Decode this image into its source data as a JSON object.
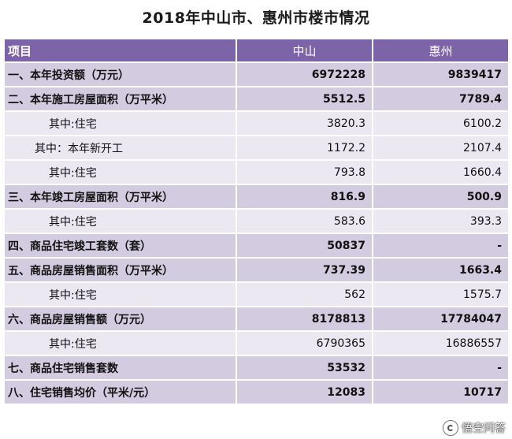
{
  "title": "2018年中山市、惠州市楼市情况",
  "header": {
    "label": "项目",
    "col1": "中山",
    "col2": "惠州"
  },
  "rows": [
    {
      "label": "一、本年投资额（万元）",
      "zs": "6972228",
      "hz": "9839417"
    },
    {
      "label": "二、本年施工房屋面积（万平米）",
      "zs": "5512.5",
      "hz": "7789.4"
    },
    {
      "label": "其中:住宅",
      "zs": "3820.3",
      "hz": "6100.2"
    },
    {
      "label": "其中：本年新开工",
      "zs": "1172.2",
      "hz": "2107.4"
    },
    {
      "label": "其中:住宅",
      "zs": "793.8",
      "hz": "1660.4"
    },
    {
      "label": "三、本年竣工房屋面积（万平米）",
      "zs": "816.9",
      "hz": "500.9"
    },
    {
      "label": "其中:住宅",
      "zs": "583.6",
      "hz": "393.3"
    },
    {
      "label": "四、商品住宅竣工套数（套）",
      "zs": "50837",
      "hz": "-"
    },
    {
      "label": "五、商品房屋销售面积（万平米）",
      "zs": "737.39",
      "hz": "1663.4"
    },
    {
      "label": "其中:住宅",
      "zs": "562",
      "hz": "1575.7"
    },
    {
      "label": "六、商品房屋销售额（万元）",
      "zs": "8178813",
      "hz": "17784047"
    },
    {
      "label": "其中:住宅",
      "zs": "6790365",
      "hz": "16886557"
    },
    {
      "label": "七、商品住宅销售套数",
      "zs": "53532",
      "hz": "-"
    },
    {
      "label": "八、住宅销售均价（平米/元）",
      "zs": "12083",
      "hz": "10717"
    }
  ],
  "watermark": {
    "text": "悟空问答",
    "icon": "wukong-logo-icon"
  }
}
